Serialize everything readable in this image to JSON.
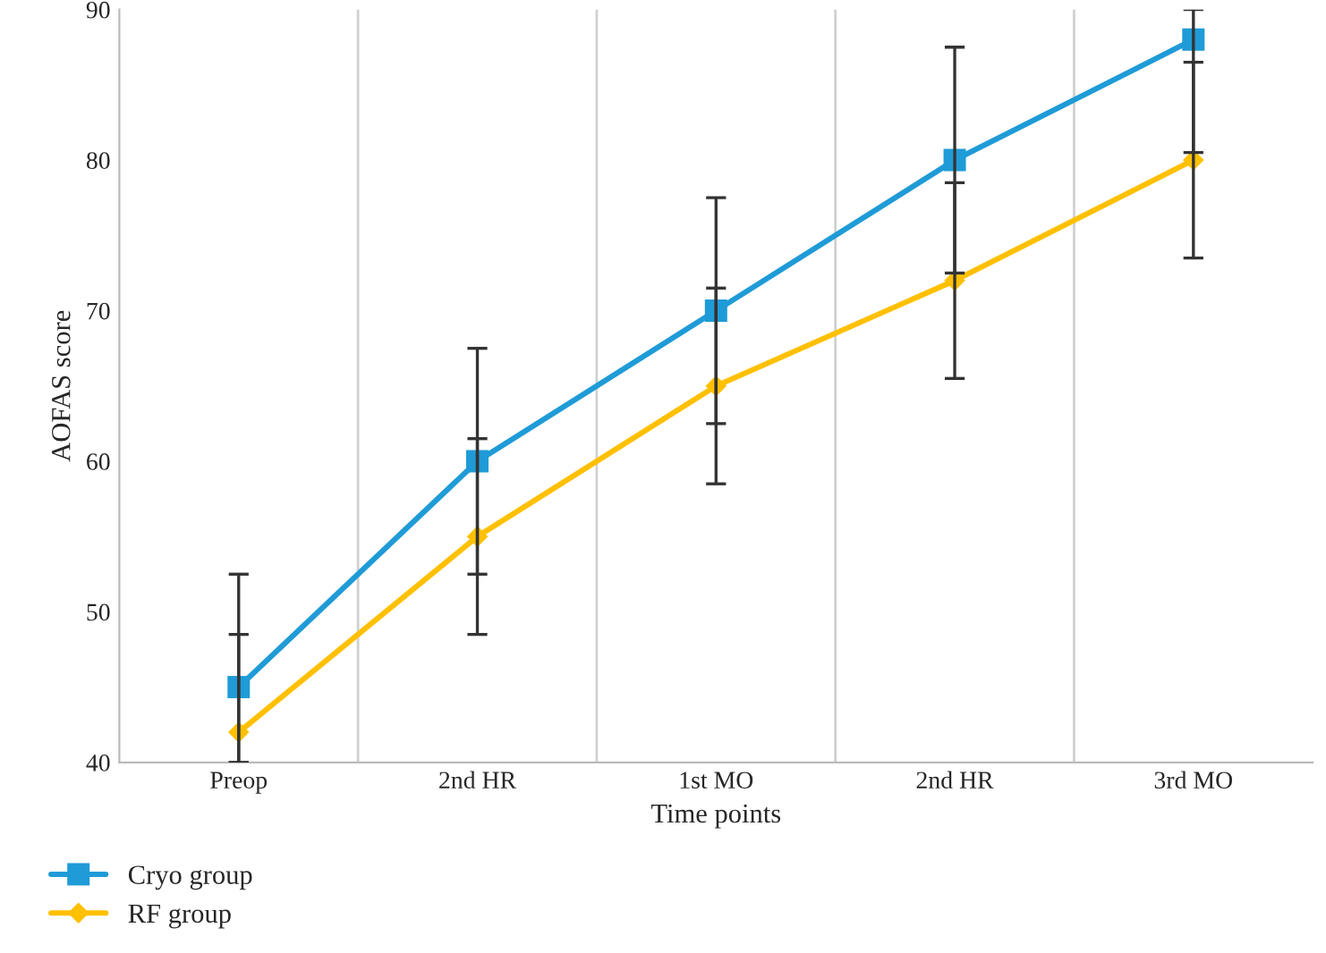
{
  "chart_data": {
    "type": "line",
    "xlabel": "Time points",
    "ylabel": "AOFAS score",
    "categories": [
      "Preop",
      "2nd HR",
      "1st MO",
      "2nd HR",
      "3rd MO"
    ],
    "series": [
      {
        "name": "Cryo group",
        "color": "#1f9bd7",
        "marker": "square",
        "values": [
          45,
          60,
          70,
          80,
          88
        ],
        "errors": [
          [
            40,
            52.5
          ],
          [
            52.5,
            67.5
          ],
          [
            62.5,
            77.5
          ],
          [
            72.5,
            87.5
          ],
          [
            80.5,
            90
          ]
        ]
      },
      {
        "name": "RF group",
        "color": "#ffc000",
        "marker": "diamond",
        "values": [
          42,
          55,
          65,
          72,
          80
        ],
        "errors": [
          [
            40,
            48.5
          ],
          [
            48.5,
            61.5
          ],
          [
            58.5,
            71.5
          ],
          [
            65.5,
            78.5
          ],
          [
            73.5,
            86.5
          ]
        ]
      }
    ],
    "ylim": [
      40,
      90
    ],
    "yticks": [
      40,
      50,
      60,
      70,
      80,
      90
    ],
    "grid": "x",
    "legend": "bottom left"
  }
}
